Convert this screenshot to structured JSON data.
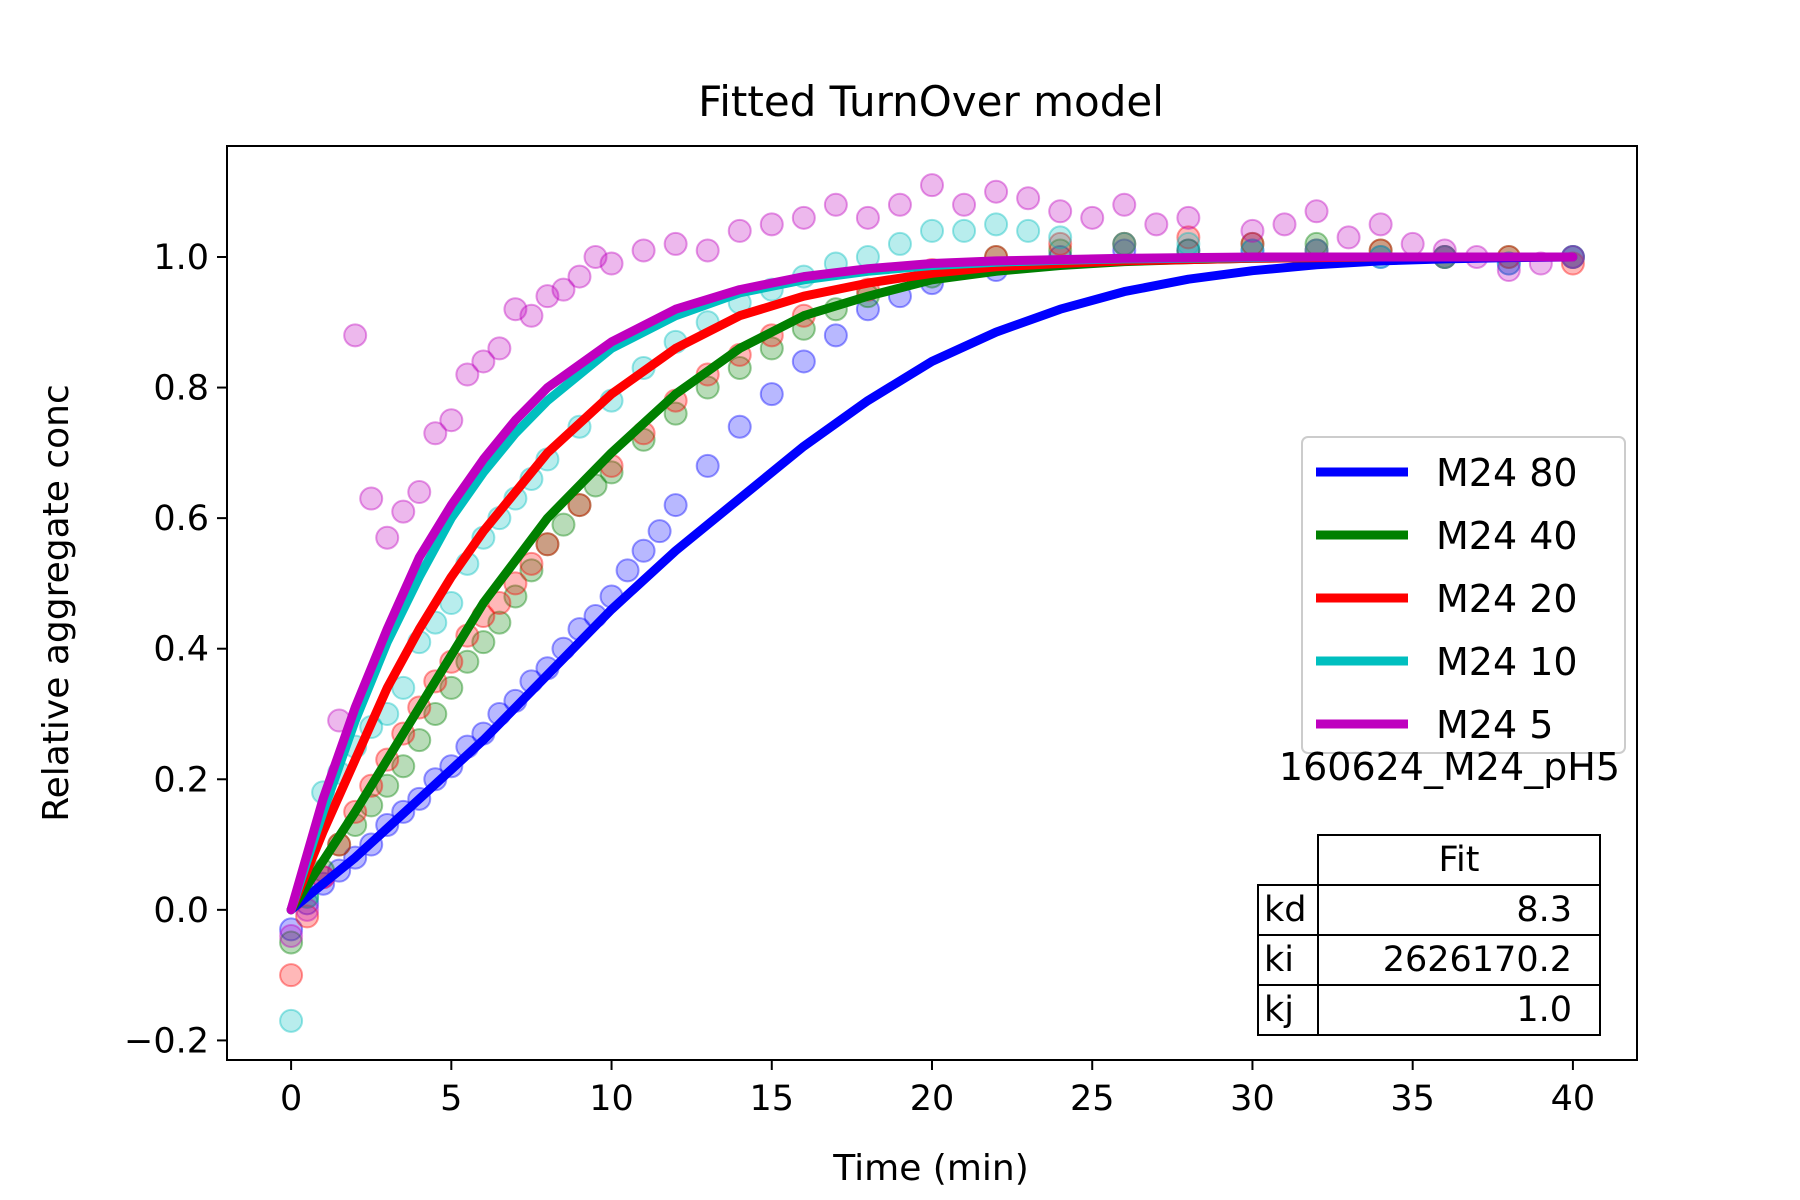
{
  "chart_data": {
    "type": "line",
    "title": "Fitted TurnOver model",
    "xlabel": "Time (min)",
    "ylabel": "Relative aggregate conc",
    "xlim": [
      -2,
      42
    ],
    "ylim": [
      -0.23,
      1.17
    ],
    "xticks": [
      0,
      5,
      10,
      15,
      20,
      25,
      30,
      35,
      40
    ],
    "yticks": [
      -0.2,
      0.0,
      0.2,
      0.4,
      0.6,
      0.8,
      1.0
    ],
    "ytick_labels": [
      "−0.2",
      "0.0",
      "0.2",
      "0.4",
      "0.6",
      "0.8",
      "1.0"
    ],
    "grid": false,
    "legend_position": "center-right",
    "annotation": "160624_M24_pH5",
    "fit_table": {
      "header": "Fit",
      "rows": [
        {
          "param": "kd",
          "value": "8.3"
        },
        {
          "param": "ki",
          "value": "2626170.2"
        },
        {
          "param": "kj",
          "value": "1.0"
        }
      ]
    },
    "series": [
      {
        "name": "M24 80",
        "color": "#0000ff",
        "fit_x": [
          0,
          2,
          4,
          6,
          8,
          10,
          12,
          14,
          16,
          18,
          20,
          22,
          24,
          26,
          28,
          30,
          32,
          34,
          36,
          38,
          40
        ],
        "fit_y": [
          0,
          0.08,
          0.17,
          0.26,
          0.36,
          0.46,
          0.55,
          0.63,
          0.71,
          0.78,
          0.84,
          0.885,
          0.92,
          0.947,
          0.966,
          0.979,
          0.988,
          0.994,
          0.997,
          0.999,
          1.0
        ],
        "points_x": [
          0,
          0.5,
          1,
          1.5,
          2,
          2.5,
          3,
          3.5,
          4,
          4.5,
          5,
          5.5,
          6,
          6.5,
          7,
          7.5,
          8,
          8.5,
          9,
          9.5,
          10,
          10.5,
          11,
          11.5,
          12,
          13,
          14,
          15,
          16,
          17,
          18,
          19,
          20,
          22,
          24,
          26,
          28,
          30,
          32,
          34,
          36,
          38,
          40
        ],
        "points_y": [
          -0.03,
          0.01,
          0.04,
          0.06,
          0.08,
          0.1,
          0.13,
          0.15,
          0.17,
          0.2,
          0.22,
          0.25,
          0.27,
          0.3,
          0.32,
          0.35,
          0.37,
          0.4,
          0.43,
          0.45,
          0.48,
          0.52,
          0.55,
          0.58,
          0.62,
          0.68,
          0.74,
          0.79,
          0.84,
          0.88,
          0.92,
          0.94,
          0.96,
          0.98,
          1.0,
          1.01,
          1.01,
          1.01,
          1.01,
          1.0,
          1.0,
          0.99,
          1.0
        ]
      },
      {
        "name": "M24 40",
        "color": "#008000",
        "fit_x": [
          0,
          2,
          4,
          6,
          8,
          10,
          12,
          14,
          16,
          18,
          20,
          22,
          24,
          26,
          28,
          30,
          32,
          34,
          36,
          38,
          40
        ],
        "fit_y": [
          0,
          0.15,
          0.31,
          0.47,
          0.6,
          0.7,
          0.79,
          0.86,
          0.91,
          0.94,
          0.965,
          0.978,
          0.987,
          0.993,
          0.996,
          0.998,
          0.999,
          1.0,
          1.0,
          1.0,
          1.0
        ],
        "points_x": [
          0,
          0.5,
          1,
          1.5,
          2,
          2.5,
          3,
          3.5,
          4,
          4.5,
          5,
          5.5,
          6,
          6.5,
          7,
          7.5,
          8,
          8.5,
          9,
          9.5,
          10,
          11,
          12,
          13,
          14,
          15,
          16,
          17,
          18,
          20,
          22,
          24,
          26,
          28,
          30,
          32,
          34,
          36,
          38,
          40
        ],
        "points_y": [
          -0.05,
          0.02,
          0.06,
          0.1,
          0.13,
          0.16,
          0.19,
          0.22,
          0.26,
          0.3,
          0.34,
          0.38,
          0.41,
          0.44,
          0.48,
          0.52,
          0.56,
          0.59,
          0.62,
          0.65,
          0.67,
          0.72,
          0.76,
          0.8,
          0.83,
          0.86,
          0.89,
          0.92,
          0.94,
          0.97,
          1.0,
          1.01,
          1.02,
          1.01,
          1.02,
          1.02,
          1.01,
          1.0,
          1.0,
          1.0
        ]
      },
      {
        "name": "M24 20",
        "color": "#ff0000",
        "fit_x": [
          0,
          1,
          2,
          3,
          4,
          5,
          6,
          8,
          10,
          12,
          14,
          16,
          18,
          20,
          22,
          24,
          26,
          28,
          30,
          32,
          34,
          36,
          38,
          40
        ],
        "fit_y": [
          0,
          0.12,
          0.23,
          0.34,
          0.43,
          0.51,
          0.58,
          0.7,
          0.79,
          0.86,
          0.91,
          0.94,
          0.96,
          0.975,
          0.985,
          0.99,
          0.994,
          0.996,
          0.998,
          0.999,
          1.0,
          1.0,
          1.0,
          1.0
        ],
        "points_x": [
          0,
          0.5,
          1,
          1.5,
          2,
          2.5,
          3,
          3.5,
          4,
          4.5,
          5,
          5.5,
          6,
          6.5,
          7,
          7.5,
          8,
          9,
          10,
          11,
          12,
          13,
          14,
          15,
          16,
          18,
          20,
          22,
          24,
          26,
          28,
          30,
          32,
          34,
          36,
          38,
          40
        ],
        "points_y": [
          -0.1,
          -0.01,
          0.05,
          0.1,
          0.15,
          0.19,
          0.23,
          0.27,
          0.31,
          0.35,
          0.38,
          0.42,
          0.45,
          0.47,
          0.5,
          0.53,
          0.56,
          0.62,
          0.68,
          0.73,
          0.78,
          0.82,
          0.85,
          0.88,
          0.91,
          0.95,
          0.98,
          1.0,
          1.02,
          1.02,
          1.03,
          1.02,
          1.01,
          1.01,
          1.0,
          1.0,
          0.99
        ]
      },
      {
        "name": "M24 10",
        "color": "#00bfbf",
        "fit_x": [
          0,
          1,
          2,
          3,
          4,
          5,
          6,
          7,
          8,
          10,
          12,
          14,
          16,
          18,
          20,
          22,
          24,
          26,
          28,
          30,
          32,
          34,
          36,
          38,
          40
        ],
        "fit_y": [
          0,
          0.15,
          0.29,
          0.41,
          0.51,
          0.6,
          0.67,
          0.73,
          0.78,
          0.86,
          0.91,
          0.945,
          0.965,
          0.978,
          0.987,
          0.992,
          0.995,
          0.997,
          0.998,
          0.999,
          1.0,
          1.0,
          1.0,
          1.0,
          1.0
        ],
        "points_x": [
          0,
          0.5,
          1,
          1.5,
          2,
          2.5,
          3,
          3.5,
          4,
          4.5,
          5,
          5.5,
          6,
          6.5,
          7,
          7.5,
          8,
          9,
          10,
          11,
          12,
          13,
          14,
          15,
          16,
          17,
          18,
          19,
          20,
          21,
          22,
          23,
          24,
          26,
          28,
          30,
          32,
          34,
          36,
          38,
          40
        ],
        "points_y": [
          -0.17,
          0.02,
          0.18,
          0.21,
          0.25,
          0.28,
          0.3,
          0.34,
          0.41,
          0.44,
          0.47,
          0.53,
          0.57,
          0.6,
          0.63,
          0.66,
          0.69,
          0.74,
          0.78,
          0.83,
          0.87,
          0.9,
          0.93,
          0.95,
          0.97,
          0.99,
          1.0,
          1.02,
          1.04,
          1.04,
          1.05,
          1.04,
          1.03,
          1.02,
          1.02,
          1.01,
          1.01,
          1.0,
          1.0,
          0.99,
          1.0
        ]
      },
      {
        "name": "M24 5",
        "color": "#bf00bf",
        "fit_x": [
          0,
          1,
          2,
          3,
          4,
          5,
          6,
          7,
          8,
          10,
          12,
          14,
          16,
          18,
          20,
          22,
          24,
          26,
          28,
          30,
          32,
          34,
          36,
          38,
          40
        ],
        "fit_y": [
          0,
          0.17,
          0.31,
          0.43,
          0.54,
          0.62,
          0.69,
          0.75,
          0.8,
          0.87,
          0.92,
          0.95,
          0.97,
          0.982,
          0.99,
          0.994,
          0.996,
          0.998,
          0.999,
          1.0,
          1.0,
          1.0,
          1.0,
          1.0,
          1.0
        ],
        "points_x": [
          0,
          0.5,
          1,
          1.5,
          2,
          2.5,
          3,
          3.5,
          4,
          4.5,
          5,
          5.5,
          6,
          6.5,
          7,
          7.5,
          8,
          8.5,
          9,
          9.5,
          10,
          11,
          12,
          13,
          14,
          15,
          16,
          17,
          18,
          19,
          20,
          21,
          22,
          23,
          24,
          25,
          26,
          27,
          28,
          30,
          31,
          32,
          33,
          34,
          35,
          36,
          37,
          38,
          39,
          40
        ],
        "points_y": [
          -0.04,
          0.0,
          0.05,
          0.29,
          0.88,
          0.63,
          0.57,
          0.61,
          0.64,
          0.73,
          0.75,
          0.82,
          0.84,
          0.86,
          0.92,
          0.91,
          0.94,
          0.95,
          0.97,
          1.0,
          0.99,
          1.01,
          1.02,
          1.01,
          1.04,
          1.05,
          1.06,
          1.08,
          1.06,
          1.08,
          1.11,
          1.08,
          1.1,
          1.09,
          1.07,
          1.06,
          1.08,
          1.05,
          1.06,
          1.04,
          1.05,
          1.07,
          1.03,
          1.05,
          1.02,
          1.01,
          1.0,
          0.98,
          0.99,
          1.0
        ]
      }
    ]
  }
}
